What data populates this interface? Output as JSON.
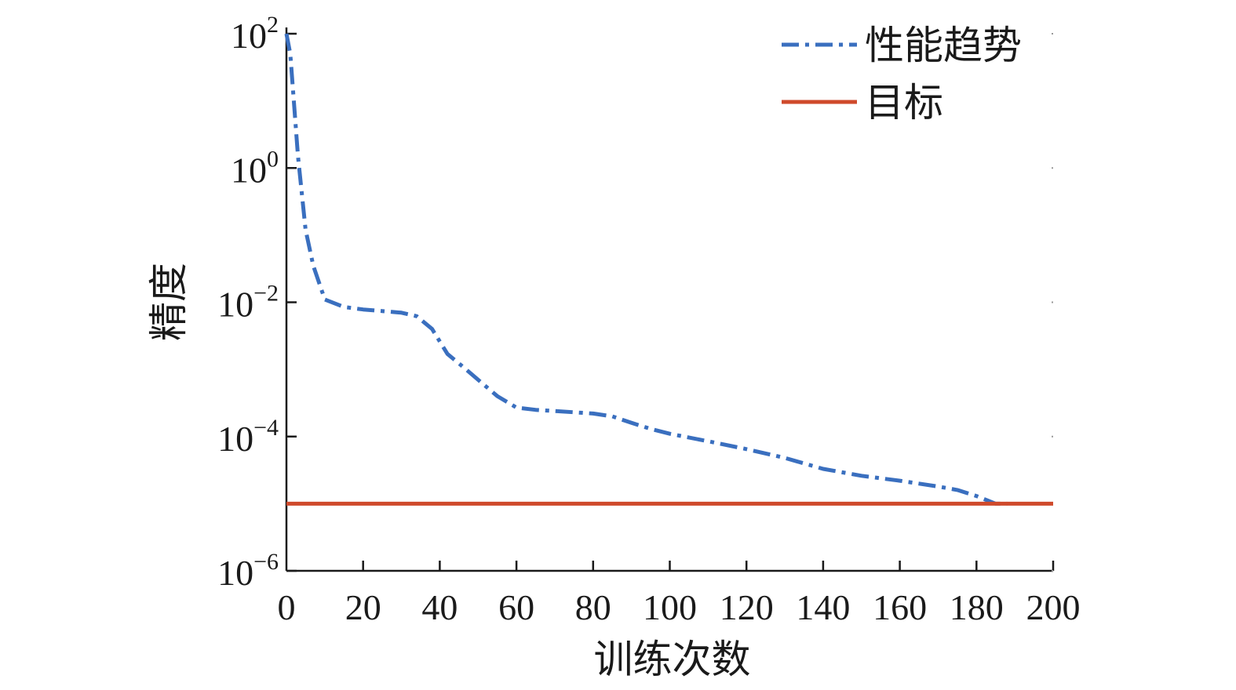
{
  "chart_data": {
    "type": "line",
    "title": "",
    "xlabel": "训练次数",
    "ylabel": "精度",
    "xlim": [
      0,
      200
    ],
    "ylim": [
      1e-06,
      100
    ],
    "yscale": "log",
    "grid": false,
    "legend_position": "top-right",
    "x_ticks": [
      0,
      20,
      40,
      60,
      80,
      100,
      120,
      140,
      160,
      180,
      200
    ],
    "y_ticks": [
      {
        "base": "10",
        "exp": "2"
      },
      {
        "base": "10",
        "exp": "0"
      },
      {
        "base": "10",
        "exp": "−2"
      },
      {
        "base": "10",
        "exp": "−4"
      },
      {
        "base": "10",
        "exp": "−6"
      }
    ],
    "series": [
      {
        "name": "性能趋势",
        "style": "dash-dot",
        "color": "#3a6fbf",
        "x": [
          0,
          1,
          3,
          5,
          7,
          10,
          15,
          20,
          25,
          30,
          34,
          38,
          42,
          46,
          50,
          55,
          60,
          65,
          70,
          75,
          80,
          85,
          90,
          95,
          100,
          110,
          120,
          130,
          140,
          150,
          160,
          170,
          175,
          180,
          185,
          188
        ],
        "y": [
          100,
          50,
          1.5,
          0.12,
          0.035,
          0.011,
          0.0085,
          0.0078,
          0.0074,
          0.007,
          0.0062,
          0.004,
          0.0017,
          0.0011,
          0.0007,
          0.0004,
          0.00027,
          0.00025,
          0.00024,
          0.00023,
          0.00022,
          0.0002,
          0.00016,
          0.00013,
          0.00011,
          8.5e-05,
          6.5e-05,
          4.8e-05,
          3.3e-05,
          2.6e-05,
          2.2e-05,
          1.8e-05,
          1.6e-05,
          1.3e-05,
          1e-05,
          1e-05
        ]
      },
      {
        "name": "目标",
        "style": "solid",
        "color": "#cf4a2b",
        "x": [
          0,
          200
        ],
        "y": [
          1e-05,
          1e-05
        ]
      }
    ]
  }
}
